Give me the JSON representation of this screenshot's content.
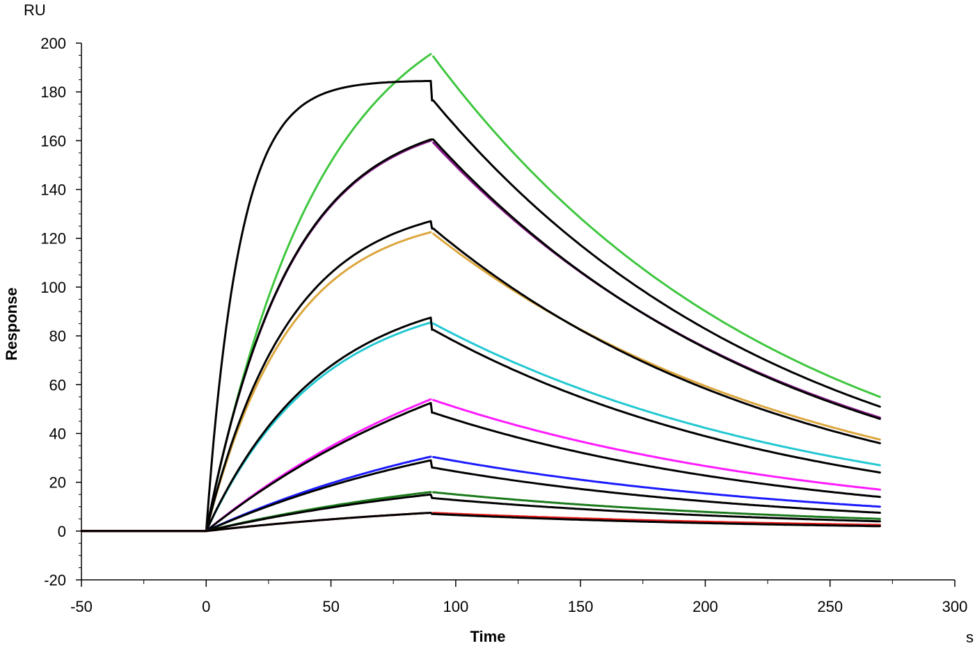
{
  "chart_data": {
    "type": "line",
    "xlabel": "Time",
    "ylabel": "Response",
    "x_unit": "s",
    "y_unit": "RU",
    "xlim": [
      -50,
      300
    ],
    "ylim": [
      -20,
      200
    ],
    "x_ticks": [
      -50,
      0,
      50,
      100,
      150,
      200,
      250,
      300
    ],
    "y_ticks": [
      -20,
      0,
      20,
      40,
      60,
      80,
      100,
      120,
      140,
      160,
      180,
      200
    ],
    "grid": false,
    "association_start_s": 0,
    "dissociation_start_s": 90,
    "end_s": 270,
    "series": [
      {
        "color": "#3ec63e",
        "fit_color": "#000000",
        "kind": "measured",
        "assoc_end": 195.5,
        "end_value": 55.0,
        "assoc_shape": "slow"
      },
      {
        "color": "#000000",
        "kind": "fit",
        "assoc_end": 184.5,
        "diss_start": 176.5,
        "end_value": 51.0,
        "assoc_shape": "fast"
      },
      {
        "color": "#8b1a8b",
        "kind": "measured",
        "assoc_end": 160.0,
        "end_value": 46.5,
        "assoc_shape": "medium"
      },
      {
        "color": "#000000",
        "kind": "fit",
        "assoc_end": 160.5,
        "diss_start": 160.5,
        "end_value": 46.0,
        "assoc_shape": "medium"
      },
      {
        "color": "#dca63c",
        "kind": "measured",
        "assoc_end": 122.5,
        "end_value": 37.5,
        "assoc_shape": "medium"
      },
      {
        "color": "#000000",
        "kind": "fit",
        "assoc_end": 127.0,
        "diss_start": 124.0,
        "end_value": 36.0,
        "assoc_shape": "medium"
      },
      {
        "color": "#22c8d2",
        "kind": "measured",
        "assoc_end": 85.5,
        "end_value": 27.0,
        "assoc_shape": "slow"
      },
      {
        "color": "#000000",
        "kind": "fit",
        "assoc_end": 87.5,
        "diss_start": 82.5,
        "end_value": 24.0,
        "assoc_shape": "slow"
      },
      {
        "color": "#ff1aff",
        "kind": "measured",
        "assoc_end": 54.0,
        "end_value": 17.0,
        "assoc_shape": "linear"
      },
      {
        "color": "#000000",
        "kind": "fit",
        "assoc_end": 52.5,
        "diss_start": 48.5,
        "end_value": 14.0,
        "assoc_shape": "linear"
      },
      {
        "color": "#1a1aff",
        "kind": "measured",
        "assoc_end": 30.5,
        "end_value": 10.0,
        "assoc_shape": "linear"
      },
      {
        "color": "#000000",
        "kind": "fit",
        "assoc_end": 29.0,
        "diss_start": 26.0,
        "end_value": 7.5,
        "assoc_shape": "linear"
      },
      {
        "color": "#1a7a1a",
        "kind": "measured",
        "assoc_end": 16.0,
        "end_value": 5.0,
        "assoc_shape": "linear"
      },
      {
        "color": "#000000",
        "kind": "fit",
        "assoc_end": 15.0,
        "diss_start": 13.5,
        "end_value": 4.0,
        "assoc_shape": "linear"
      },
      {
        "color": "#e81a1a",
        "kind": "measured",
        "assoc_end": 7.5,
        "end_value": 2.5,
        "assoc_shape": "linear"
      },
      {
        "color": "#000000",
        "kind": "fit",
        "assoc_end": 7.5,
        "diss_start": 7.0,
        "end_value": 2.0,
        "assoc_shape": "linear"
      }
    ]
  }
}
